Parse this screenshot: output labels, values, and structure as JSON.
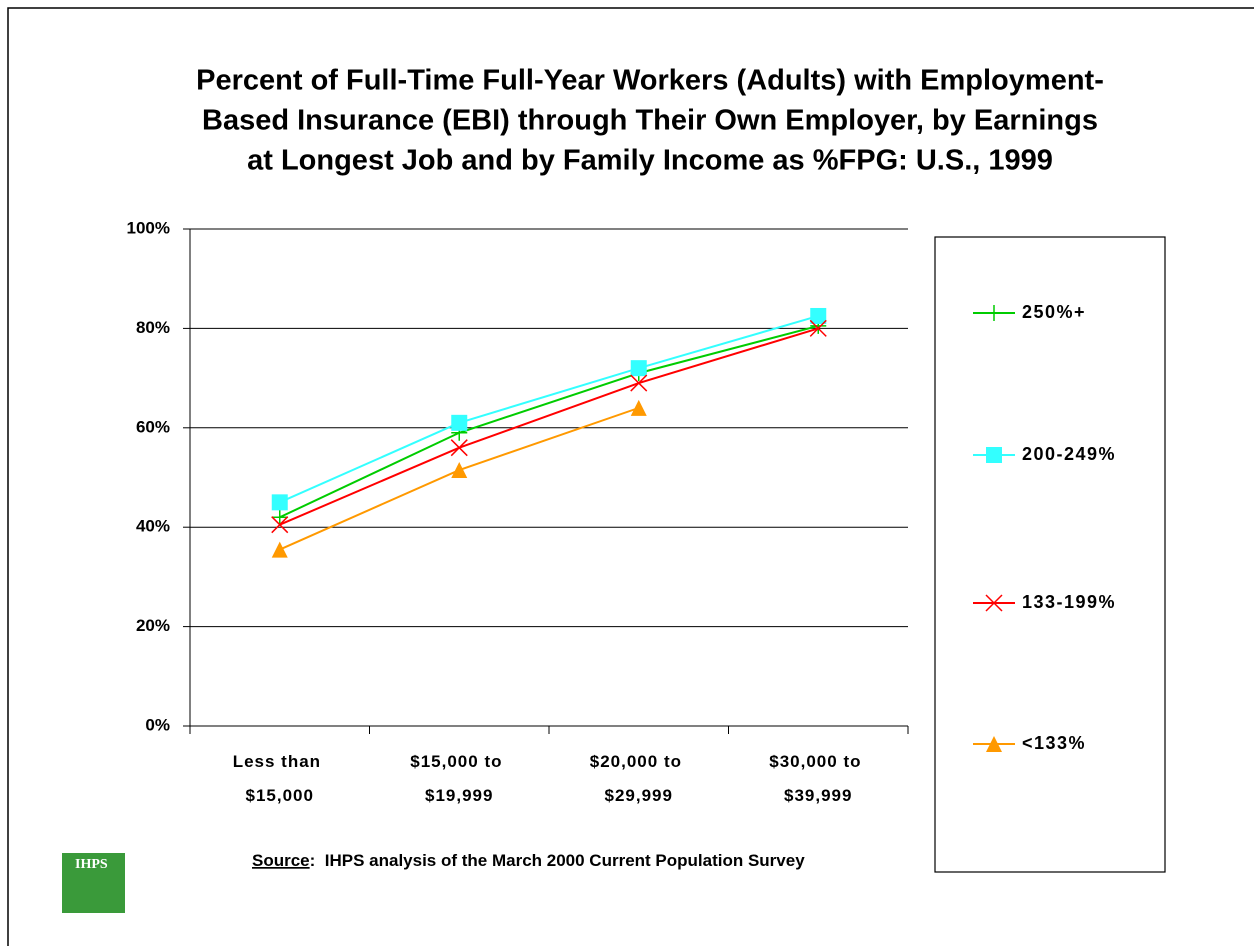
{
  "chart_data": {
    "type": "line",
    "title": [
      "Percent of Full-Time Full-Year Workers (Adults) with Employment-",
      "Based Insurance (EBI) through Their Own Employer, by Earnings",
      "at Longest Job and by Family Income as %FPG: U.S., 1999"
    ],
    "categories": [
      "Less than $15,000",
      "$15,000 to $19,999",
      "$20,000 to $29,999",
      "$30,000 to $39,999"
    ],
    "series": [
      {
        "name": "250%+",
        "color": "#00cc00",
        "marker": "plus",
        "values": [
          42,
          59,
          71,
          80.5
        ]
      },
      {
        "name": "200-249%",
        "color": "#33ffff",
        "marker": "square",
        "values": [
          45,
          61,
          72,
          82.5
        ]
      },
      {
        "name": "133-199%",
        "color": "#ff0000",
        "marker": "x",
        "values": [
          40.5,
          56,
          69,
          80
        ]
      },
      {
        "name": "<133%",
        "color": "#ff9900",
        "marker": "triangle",
        "values": [
          35.5,
          51.5,
          64,
          null
        ]
      }
    ],
    "ylim": [
      0,
      100
    ],
    "yticks": [
      {
        "value": 0,
        "label": "0%"
      },
      {
        "value": 20,
        "label": "20%"
      },
      {
        "value": 40,
        "label": "40%"
      },
      {
        "value": 60,
        "label": "60%"
      },
      {
        "value": 80,
        "label": "80%"
      },
      {
        "value": 100,
        "label": "100%"
      }
    ],
    "grid": true,
    "legend": "right"
  },
  "footer": {
    "logo": "IHPS",
    "source_label": "Source",
    "source_text": ":  IHPS analysis of the March 2000 Current Population Survey"
  }
}
